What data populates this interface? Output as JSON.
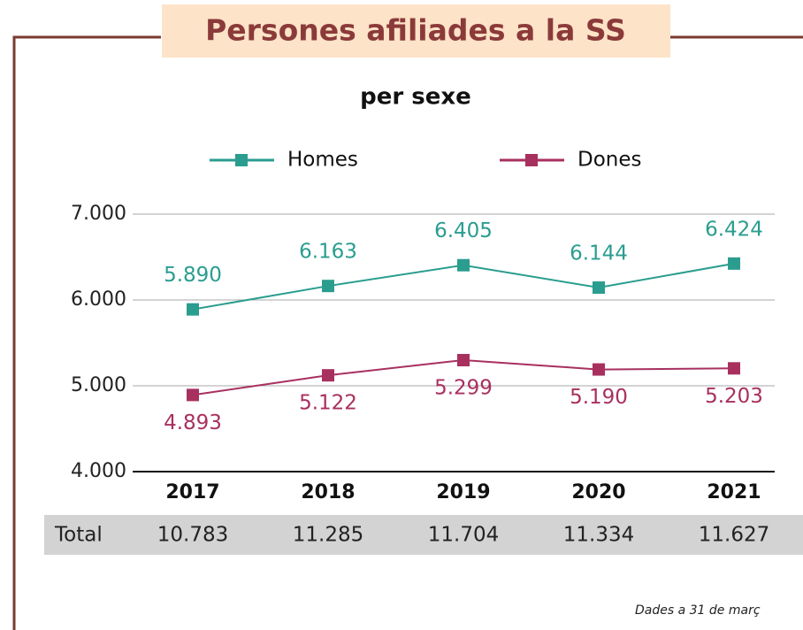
{
  "chart_data": {
    "type": "line",
    "title": "Persones afiliades a la SS",
    "subtitle": "per sexe",
    "categories": [
      "2017",
      "2018",
      "2019",
      "2020",
      "2021"
    ],
    "series": [
      {
        "name": "Homes",
        "color": "#2a9d8f",
        "values": [
          5890,
          6163,
          6405,
          6144,
          6424
        ],
        "value_labels": [
          "5.890",
          "6.163",
          "6.405",
          "6.144",
          "6.424"
        ]
      },
      {
        "name": "Dones",
        "color": "#a8305f",
        "values": [
          4893,
          5122,
          5299,
          5190,
          5203
        ],
        "value_labels": [
          "4.893",
          "5.122",
          "5.299",
          "5.190",
          "5.203"
        ]
      }
    ],
    "ylim": [
      4000,
      7000
    ],
    "yticks": [
      {
        "value": 4000,
        "label": "4.000"
      },
      {
        "value": 5000,
        "label": "5.000"
      },
      {
        "value": 6000,
        "label": "6.000"
      },
      {
        "value": 7000,
        "label": "7.000"
      }
    ],
    "grid": true,
    "legend": "top",
    "totals": {
      "label": "Total",
      "values": [
        10783,
        11285,
        11704,
        11334,
        11627
      ],
      "value_labels": [
        "10.783",
        "11.285",
        "11.704",
        "11.334",
        "11.627"
      ]
    },
    "footnote": "Dades a 31 de març"
  }
}
